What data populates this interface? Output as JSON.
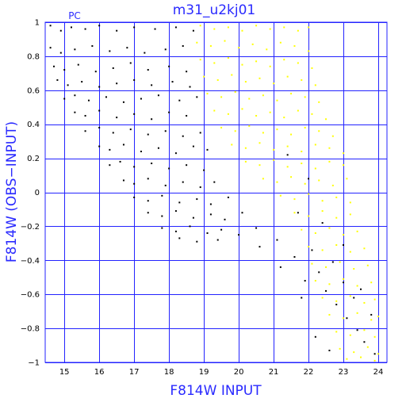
{
  "chart_data": {
    "type": "scatter",
    "title": "m31_u2kj01",
    "corner_label": "PC",
    "xlabel": "F814W INPUT",
    "ylabel": "F814W (OBS−INPUT)",
    "xlim": [
      14.45,
      24.25
    ],
    "ylim": [
      -1,
      1
    ],
    "x_ticks": [
      15,
      16,
      17,
      18,
      19,
      20,
      21,
      22,
      23,
      24
    ],
    "x_tick_labels": [
      "15",
      "16",
      "17",
      "18",
      "19",
      "20",
      "21",
      "22",
      "23",
      "24"
    ],
    "y_ticks": [
      -1,
      -0.8,
      -0.6,
      -0.4,
      -0.2,
      0,
      0.2,
      0.4,
      0.6,
      0.8,
      1
    ],
    "y_tick_labels": [
      "−1",
      "−0.8",
      "−0.6",
      "−0.4",
      "−0.2",
      "0",
      "0.2",
      "0.4",
      "0.6",
      "0.8",
      "1"
    ],
    "grid": true,
    "series": [
      {
        "color": "#000000",
        "points": [
          [
            14.6,
            0.98
          ],
          [
            14.9,
            0.95
          ],
          [
            15.2,
            0.97
          ],
          [
            15.6,
            0.96
          ],
          [
            16.0,
            0.98
          ],
          [
            16.5,
            0.95
          ],
          [
            17.0,
            0.97
          ],
          [
            17.6,
            0.96
          ],
          [
            18.2,
            0.97
          ],
          [
            18.7,
            0.95
          ],
          [
            14.6,
            0.85
          ],
          [
            14.9,
            0.82
          ],
          [
            15.3,
            0.84
          ],
          [
            15.8,
            0.86
          ],
          [
            16.3,
            0.83
          ],
          [
            16.8,
            0.85
          ],
          [
            17.3,
            0.82
          ],
          [
            17.9,
            0.84
          ],
          [
            18.4,
            0.86
          ],
          [
            14.7,
            0.74
          ],
          [
            15.0,
            0.72
          ],
          [
            15.4,
            0.75
          ],
          [
            15.9,
            0.71
          ],
          [
            16.4,
            0.73
          ],
          [
            16.9,
            0.76
          ],
          [
            17.4,
            0.72
          ],
          [
            18.0,
            0.74
          ],
          [
            18.5,
            0.71
          ],
          [
            14.8,
            0.66
          ],
          [
            15.1,
            0.63
          ],
          [
            15.5,
            0.65
          ],
          [
            16.0,
            0.62
          ],
          [
            16.5,
            0.64
          ],
          [
            17.0,
            0.66
          ],
          [
            17.5,
            0.63
          ],
          [
            18.1,
            0.65
          ],
          [
            18.6,
            0.62
          ],
          [
            15.0,
            0.55
          ],
          [
            15.3,
            0.57
          ],
          [
            15.7,
            0.54
          ],
          [
            16.2,
            0.56
          ],
          [
            16.7,
            0.53
          ],
          [
            17.2,
            0.55
          ],
          [
            17.7,
            0.57
          ],
          [
            18.3,
            0.54
          ],
          [
            18.8,
            0.56
          ],
          [
            15.3,
            0.47
          ],
          [
            15.6,
            0.45
          ],
          [
            16.0,
            0.48
          ],
          [
            16.5,
            0.44
          ],
          [
            17.0,
            0.46
          ],
          [
            17.5,
            0.43
          ],
          [
            18.0,
            0.47
          ],
          [
            18.5,
            0.45
          ],
          [
            15.6,
            0.36
          ],
          [
            16.0,
            0.38
          ],
          [
            16.4,
            0.35
          ],
          [
            16.9,
            0.37
          ],
          [
            17.4,
            0.34
          ],
          [
            17.9,
            0.36
          ],
          [
            18.4,
            0.33
          ],
          [
            18.9,
            0.35
          ],
          [
            16.0,
            0.27
          ],
          [
            16.3,
            0.25
          ],
          [
            16.7,
            0.28
          ],
          [
            17.2,
            0.24
          ],
          [
            17.7,
            0.26
          ],
          [
            18.2,
            0.23
          ],
          [
            18.7,
            0.27
          ],
          [
            19.1,
            0.25
          ],
          [
            16.3,
            0.16
          ],
          [
            16.6,
            0.18
          ],
          [
            17.0,
            0.15
          ],
          [
            17.5,
            0.17
          ],
          [
            18.0,
            0.14
          ],
          [
            18.5,
            0.16
          ],
          [
            19.0,
            0.13
          ],
          [
            16.7,
            0.07
          ],
          [
            17.0,
            0.05
          ],
          [
            17.4,
            0.08
          ],
          [
            17.9,
            0.04
          ],
          [
            18.4,
            0.06
          ],
          [
            18.9,
            0.03
          ],
          [
            19.3,
            0.06
          ],
          [
            17.0,
            -0.03
          ],
          [
            17.4,
            -0.05
          ],
          [
            17.8,
            -0.02
          ],
          [
            18.3,
            -0.06
          ],
          [
            18.8,
            -0.04
          ],
          [
            19.2,
            -0.07
          ],
          [
            19.7,
            -0.03
          ],
          [
            17.4,
            -0.12
          ],
          [
            17.8,
            -0.14
          ],
          [
            18.2,
            -0.11
          ],
          [
            18.7,
            -0.15
          ],
          [
            19.2,
            -0.13
          ],
          [
            19.6,
            -0.16
          ],
          [
            20.1,
            -0.12
          ],
          [
            17.8,
            -0.21
          ],
          [
            18.2,
            -0.23
          ],
          [
            18.6,
            -0.2
          ],
          [
            19.1,
            -0.24
          ],
          [
            19.5,
            -0.22
          ],
          [
            20.0,
            -0.25
          ],
          [
            20.5,
            -0.21
          ],
          [
            18.3,
            -0.27
          ],
          [
            18.8,
            -0.29
          ],
          [
            19.4,
            -0.28
          ],
          [
            20.6,
            -0.32
          ],
          [
            21.1,
            -0.28
          ],
          [
            21.2,
            -0.44
          ],
          [
            21.6,
            -0.38
          ],
          [
            21.9,
            -0.52
          ],
          [
            22.1,
            -0.34
          ],
          [
            22.3,
            -0.47
          ],
          [
            22.5,
            -0.58
          ],
          [
            22.7,
            -0.41
          ],
          [
            22.8,
            -0.66
          ],
          [
            23.0,
            -0.53
          ],
          [
            23.1,
            -0.74
          ],
          [
            23.3,
            -0.62
          ],
          [
            23.4,
            -0.81
          ],
          [
            23.5,
            -0.57
          ],
          [
            23.6,
            -0.88
          ],
          [
            23.8,
            -0.72
          ],
          [
            23.9,
            -0.95
          ],
          [
            22.2,
            -0.85
          ],
          [
            22.6,
            -0.93
          ],
          [
            21.7,
            -0.12
          ],
          [
            22.0,
            0.08
          ],
          [
            22.4,
            -0.18
          ],
          [
            23.0,
            -0.31
          ],
          [
            21.4,
            0.22
          ],
          [
            21.8,
            -0.62
          ]
        ]
      },
      {
        "color": "#ffff00",
        "points": [
          [
            18.9,
            0.98
          ],
          [
            19.3,
            0.96
          ],
          [
            19.7,
            0.97
          ],
          [
            20.1,
            0.95
          ],
          [
            20.5,
            0.98
          ],
          [
            20.9,
            0.96
          ],
          [
            21.3,
            0.97
          ],
          [
            21.7,
            0.95
          ],
          [
            22.0,
            0.97
          ],
          [
            18.8,
            0.88
          ],
          [
            19.2,
            0.86
          ],
          [
            19.6,
            0.89
          ],
          [
            20.0,
            0.85
          ],
          [
            20.4,
            0.87
          ],
          [
            20.8,
            0.84
          ],
          [
            21.2,
            0.88
          ],
          [
            21.6,
            0.86
          ],
          [
            22.0,
            0.83
          ],
          [
            18.9,
            0.78
          ],
          [
            19.3,
            0.76
          ],
          [
            19.7,
            0.79
          ],
          [
            20.1,
            0.75
          ],
          [
            20.5,
            0.77
          ],
          [
            20.9,
            0.74
          ],
          [
            21.3,
            0.78
          ],
          [
            21.7,
            0.76
          ],
          [
            22.1,
            0.73
          ],
          [
            19.0,
            0.68
          ],
          [
            19.4,
            0.66
          ],
          [
            19.8,
            0.69
          ],
          [
            20.2,
            0.65
          ],
          [
            20.6,
            0.67
          ],
          [
            21.0,
            0.64
          ],
          [
            21.4,
            0.68
          ],
          [
            21.8,
            0.66
          ],
          [
            22.2,
            0.63
          ],
          [
            19.1,
            0.58
          ],
          [
            19.5,
            0.56
          ],
          [
            19.9,
            0.59
          ],
          [
            20.3,
            0.55
          ],
          [
            20.7,
            0.57
          ],
          [
            21.1,
            0.54
          ],
          [
            21.5,
            0.58
          ],
          [
            21.9,
            0.56
          ],
          [
            22.3,
            0.53
          ],
          [
            19.3,
            0.48
          ],
          [
            19.7,
            0.46
          ],
          [
            20.1,
            0.49
          ],
          [
            20.5,
            0.45
          ],
          [
            20.9,
            0.47
          ],
          [
            21.3,
            0.44
          ],
          [
            21.7,
            0.48
          ],
          [
            22.1,
            0.46
          ],
          [
            22.5,
            0.43
          ],
          [
            19.5,
            0.38
          ],
          [
            19.9,
            0.36
          ],
          [
            20.3,
            0.39
          ],
          [
            20.7,
            0.35
          ],
          [
            21.1,
            0.37
          ],
          [
            21.5,
            0.34
          ],
          [
            21.9,
            0.38
          ],
          [
            22.3,
            0.36
          ],
          [
            22.7,
            0.33
          ],
          [
            19.8,
            0.28
          ],
          [
            20.2,
            0.26
          ],
          [
            20.6,
            0.29
          ],
          [
            21.0,
            0.25
          ],
          [
            21.4,
            0.27
          ],
          [
            21.8,
            0.24
          ],
          [
            22.2,
            0.28
          ],
          [
            22.6,
            0.26
          ],
          [
            23.0,
            0.23
          ],
          [
            20.2,
            0.18
          ],
          [
            20.6,
            0.16
          ],
          [
            21.0,
            0.19
          ],
          [
            21.4,
            0.15
          ],
          [
            21.8,
            0.17
          ],
          [
            22.2,
            0.14
          ],
          [
            22.6,
            0.18
          ],
          [
            23.0,
            0.16
          ],
          [
            20.7,
            0.08
          ],
          [
            21.1,
            0.06
          ],
          [
            21.5,
            0.09
          ],
          [
            21.9,
            0.05
          ],
          [
            22.3,
            0.07
          ],
          [
            22.7,
            0.04
          ],
          [
            23.1,
            0.08
          ],
          [
            21.2,
            -0.02
          ],
          [
            21.6,
            -0.04
          ],
          [
            22.0,
            -0.01
          ],
          [
            22.4,
            -0.05
          ],
          [
            22.8,
            -0.03
          ],
          [
            23.2,
            -0.06
          ],
          [
            21.6,
            -0.12
          ],
          [
            22.0,
            -0.14
          ],
          [
            22.4,
            -0.11
          ],
          [
            22.8,
            -0.15
          ],
          [
            23.2,
            -0.13
          ],
          [
            21.8,
            -0.22
          ],
          [
            22.2,
            -0.24
          ],
          [
            22.6,
            -0.21
          ],
          [
            23.0,
            -0.25
          ],
          [
            23.4,
            -0.23
          ],
          [
            22.0,
            -0.32
          ],
          [
            22.4,
            -0.34
          ],
          [
            22.8,
            -0.31
          ],
          [
            23.2,
            -0.35
          ],
          [
            23.6,
            -0.33
          ],
          [
            22.1,
            -0.42
          ],
          [
            22.5,
            -0.44
          ],
          [
            22.9,
            -0.41
          ],
          [
            23.3,
            -0.45
          ],
          [
            23.7,
            -0.43
          ],
          [
            22.2,
            -0.52
          ],
          [
            22.6,
            -0.54
          ],
          [
            23.0,
            -0.51
          ],
          [
            23.4,
            -0.55
          ],
          [
            23.8,
            -0.53
          ],
          [
            22.4,
            -0.62
          ],
          [
            22.8,
            -0.64
          ],
          [
            23.2,
            -0.61
          ],
          [
            23.6,
            -0.65
          ],
          [
            23.9,
            -0.63
          ],
          [
            22.6,
            -0.72
          ],
          [
            23.0,
            -0.74
          ],
          [
            23.4,
            -0.71
          ],
          [
            23.8,
            -0.75
          ],
          [
            24.0,
            -0.73
          ],
          [
            22.8,
            -0.82
          ],
          [
            23.2,
            -0.84
          ],
          [
            23.6,
            -0.81
          ],
          [
            23.9,
            -0.85
          ],
          [
            22.9,
            -0.92
          ],
          [
            23.3,
            -0.94
          ],
          [
            23.7,
            -0.91
          ],
          [
            24.0,
            -0.95
          ],
          [
            23.1,
            -0.98
          ],
          [
            23.5,
            -0.97
          ],
          [
            23.9,
            -0.99
          ]
        ]
      }
    ]
  }
}
